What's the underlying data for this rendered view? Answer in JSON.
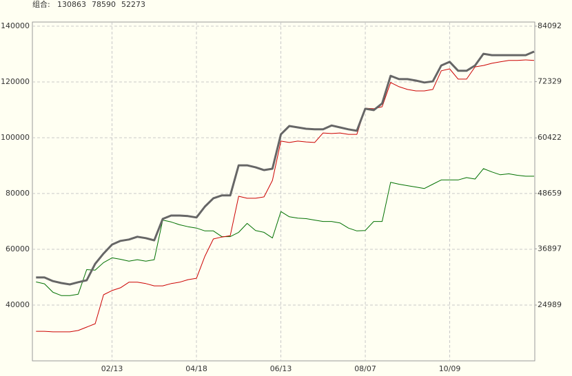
{
  "chart_data": {
    "type": "line",
    "legend_title": "组合:",
    "categories": [
      null,
      null,
      null,
      null,
      null,
      null,
      null,
      null,
      null,
      "02/13",
      null,
      null,
      null,
      null,
      null,
      null,
      null,
      null,
      null,
      "04/18",
      null,
      null,
      null,
      null,
      null,
      null,
      null,
      null,
      null,
      "06/13",
      null,
      null,
      null,
      null,
      null,
      null,
      null,
      null,
      null,
      "08/07",
      null,
      null,
      null,
      null,
      null,
      null,
      null,
      null,
      null,
      "10/09",
      null,
      null,
      null,
      null,
      null,
      null,
      null,
      null,
      null,
      null
    ],
    "series": [
      {
        "name": "52273",
        "color": "#007000",
        "axis": "y2",
        "width": 1,
        "values": [
          29900,
          29500,
          27700,
          27000,
          27000,
          27300,
          32500,
          32400,
          34000,
          35000,
          34700,
          34300,
          34600,
          34300,
          34600,
          43000,
          42600,
          42000,
          41600,
          41300,
          40700,
          40700,
          39500,
          39500,
          40400,
          42300,
          40800,
          40400,
          39200,
          44800,
          43700,
          43400,
          43300,
          43000,
          42700,
          42700,
          42400,
          41300,
          40700,
          40800,
          42700,
          42700,
          51000,
          50600,
          50300,
          50000,
          49700,
          50600,
          51500,
          51500,
          51500,
          52000,
          51700,
          53900,
          53200,
          52600,
          52800,
          52500,
          52300,
          52300
        ]
      },
      {
        "name": "78590",
        "color": "#cc0000",
        "width": 1,
        "values": [
          30600,
          30600,
          30400,
          30400,
          30400,
          30900,
          32100,
          33300,
          43700,
          45200,
          46200,
          48200,
          48200,
          47700,
          46900,
          46900,
          47700,
          48200,
          49100,
          49600,
          57500,
          63700,
          64400,
          64900,
          79000,
          78300,
          78300,
          78800,
          84700,
          98800,
          98300,
          98800,
          98500,
          98300,
          101700,
          101500,
          101700,
          101200,
          101200,
          110600,
          110400,
          111100,
          119800,
          118300,
          117300,
          116800,
          116800,
          117300,
          124000,
          124700,
          121000,
          121000,
          125400,
          125900,
          126700,
          127200,
          127700,
          127700,
          127900,
          127700
        ]
      },
      {
        "name": "130863",
        "color": "#666666",
        "width": 3,
        "values": [
          49900,
          49900,
          48600,
          47900,
          47400,
          48200,
          48900,
          54800,
          58500,
          61700,
          63000,
          63500,
          64500,
          64000,
          63200,
          70900,
          72100,
          72100,
          71900,
          71400,
          75300,
          78300,
          79300,
          79300,
          90100,
          90100,
          89400,
          88400,
          88900,
          101200,
          104200,
          103700,
          103200,
          103000,
          103000,
          104400,
          103700,
          103000,
          102500,
          110400,
          109900,
          112300,
          122200,
          121000,
          121000,
          120500,
          119800,
          120200,
          125900,
          127200,
          124000,
          124000,
          125900,
          130100,
          129600,
          129600,
          129600,
          129600,
          129600,
          130900
        ]
      }
    ],
    "ylim": [
      20000,
      141481
    ],
    "yticks": [
      40000,
      60000,
      80000,
      100000,
      120000,
      140000
    ],
    "y2lim": [
      13169,
      84968
    ],
    "y2ticks": [
      24989,
      36897,
      48659,
      60422,
      72329,
      84092
    ],
    "grid": true
  }
}
